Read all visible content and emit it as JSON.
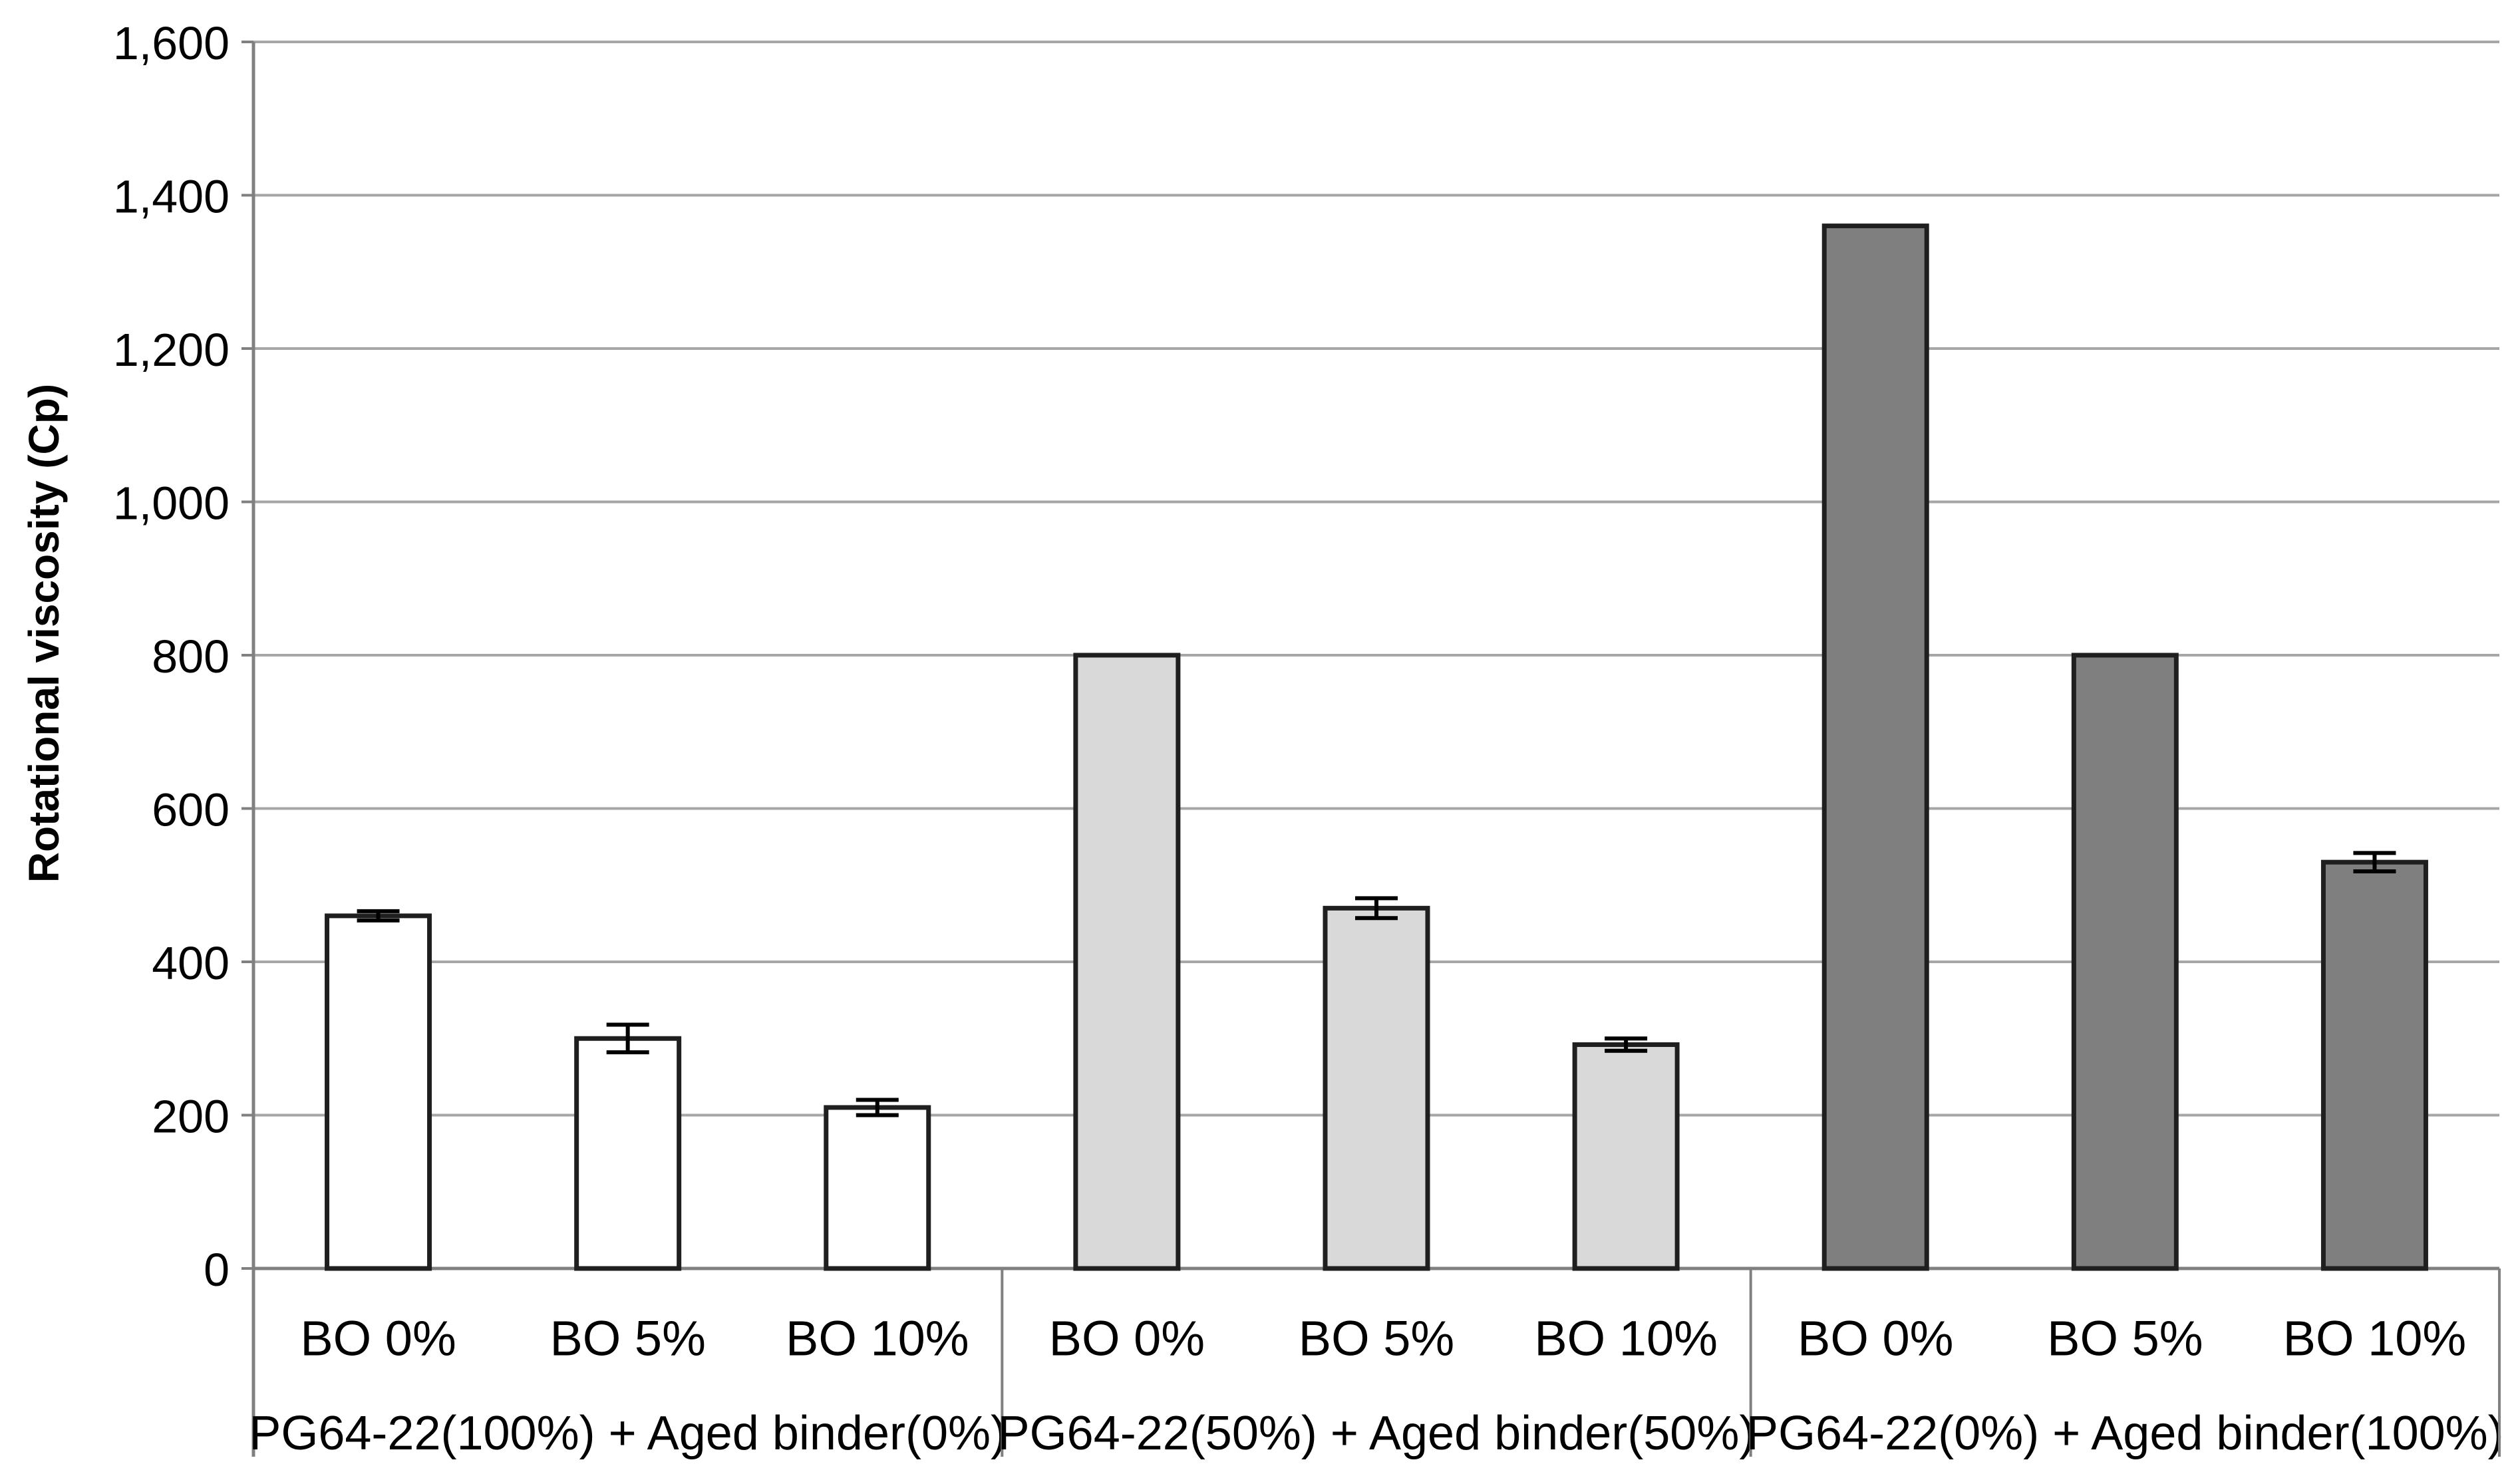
{
  "chart_data": {
    "type": "bar",
    "title": "",
    "ylabel": "Rotational viscosity (Cp)",
    "xlabel": "",
    "categories": [
      "BO 0%",
      "BO 5%",
      "BO 10%"
    ],
    "series": [
      {
        "name": "PG64-22(100%) + Aged binder(0%)",
        "fill": "#ffffff",
        "values": [
          460,
          300,
          210
        ],
        "errors": [
          6,
          18,
          10
        ]
      },
      {
        "name": "PG64-22(50%) + Aged binder(50%)",
        "fill": "#d9d9d9",
        "values": [
          800,
          470,
          292
        ],
        "errors": [
          0,
          13,
          8
        ]
      },
      {
        "name": "PG64-22(0%) + Aged binder(100%)",
        "fill": "#7f7f7f",
        "values": [
          1360,
          800,
          530
        ],
        "errors": [
          0,
          0,
          12
        ]
      }
    ],
    "ylim": [
      0,
      1600
    ],
    "ytick_step": 200,
    "ytick_labels": [
      "0",
      "200",
      "400",
      "600",
      "800",
      "1,000",
      "1,200",
      "1,400",
      "1,600"
    ],
    "grid": "horizontal",
    "legend": "none",
    "colors": {
      "bar_outline": "#1f1f1f",
      "gridline": "#a6a6a6",
      "axis_line": "#808080",
      "error_bar": "#000000",
      "text": "#000000"
    }
  }
}
